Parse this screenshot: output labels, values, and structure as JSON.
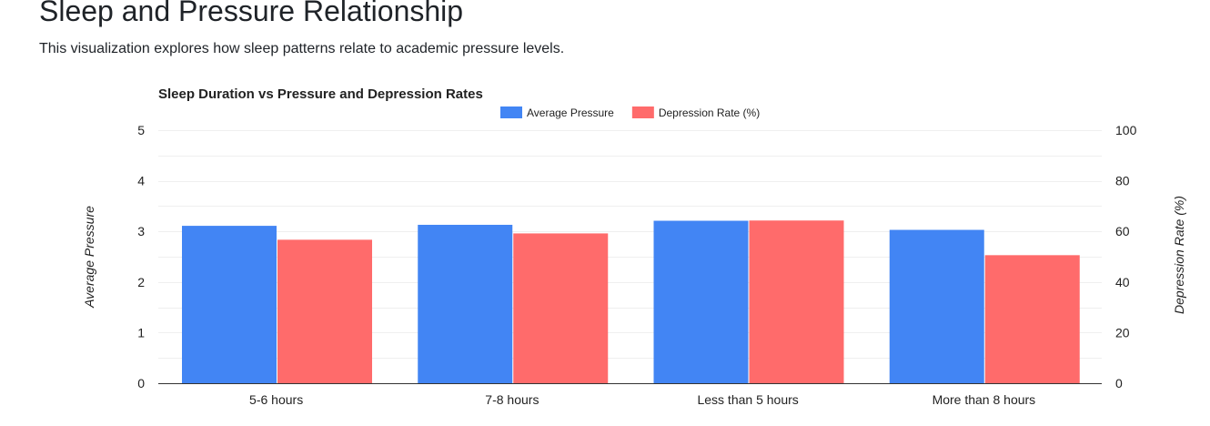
{
  "page": {
    "title": "Sleep and Pressure Relationship",
    "description": "This visualization explores how sleep patterns relate to academic pressure levels."
  },
  "chart_data": {
    "type": "bar",
    "title": "Sleep Duration vs Pressure and Depression Rates",
    "categories": [
      "5-6 hours",
      "7-8 hours",
      "Less than 5 hours",
      "More than 8 hours"
    ],
    "series": [
      {
        "name": "Average Pressure",
        "axis": "left",
        "color": "#4285f4",
        "values": [
          3.11,
          3.13,
          3.21,
          3.03
        ]
      },
      {
        "name": "Depression Rate (%)",
        "axis": "right",
        "color": "#ff6b6b",
        "values": [
          56.7,
          59.2,
          64.3,
          50.6
        ]
      }
    ],
    "y_left": {
      "label": "Average Pressure",
      "range": [
        0,
        5
      ],
      "ticks": [
        "0",
        "1",
        "2",
        "3",
        "4",
        "5"
      ]
    },
    "y_right": {
      "label": "Depression Rate (%)",
      "range": [
        0,
        100
      ],
      "ticks": [
        "0",
        "20",
        "40",
        "60",
        "80",
        "100"
      ]
    },
    "grid": true,
    "legend_position": "top-center"
  }
}
